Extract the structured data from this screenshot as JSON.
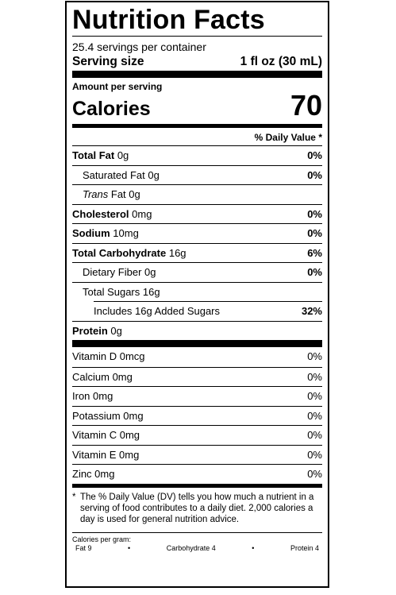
{
  "title": "Nutrition Facts",
  "servings_per_container": "25.4 servings per container",
  "serving_size_label": "Serving size",
  "serving_size_value": "1 fl oz (30 mL)",
  "amount_per_serving": "Amount per serving",
  "calories_label": "Calories",
  "calories_value": "70",
  "daily_value_header": "% Daily Value *",
  "nutrients": [
    {
      "name": "Total Fat",
      "amount": "0g",
      "dv": "0%"
    },
    {
      "name": "Saturated Fat",
      "amount": "0g",
      "dv": "0%"
    },
    {
      "name": "Trans",
      "rest": "Fat 0g",
      "dv": ""
    },
    {
      "name": "Cholesterol",
      "amount": "0mg",
      "dv": "0%"
    },
    {
      "name": "Sodium",
      "amount": "10mg",
      "dv": "0%"
    },
    {
      "name": "Total Carbohydrate",
      "amount": "16g",
      "dv": "6%"
    },
    {
      "name": "Dietary Fiber",
      "amount": "0g",
      "dv": "0%"
    },
    {
      "name": "Total Sugars",
      "amount": "16g",
      "dv": ""
    },
    {
      "name": "Includes 16g Added Sugars",
      "dv": "32%"
    },
    {
      "name": "Protein",
      "amount": "0g",
      "dv": ""
    }
  ],
  "vitamins": [
    {
      "name": "Vitamin D 0mcg",
      "dv": "0%"
    },
    {
      "name": "Calcium 0mg",
      "dv": "0%"
    },
    {
      "name": "Iron 0mg",
      "dv": "0%"
    },
    {
      "name": "Potassium 0mg",
      "dv": "0%"
    },
    {
      "name": "Vitamin C 0mg",
      "dv": "0%"
    },
    {
      "name": "Vitamin E 0mg",
      "dv": "0%"
    },
    {
      "name": "Zinc 0mg",
      "dv": "0%"
    }
  ],
  "footnote_star": "*",
  "footnote": "The % Daily Value (DV) tells you how much a nutrient in a serving of food contributes to a daily diet. 2,000 calories a day is used for general nutrition advice.",
  "calories_per_gram": {
    "label": "Calories per gram:",
    "fat": "Fat 9",
    "carbohydrate": "Carbohydrate 4",
    "protein": "Protein 4",
    "bullet": "•"
  }
}
